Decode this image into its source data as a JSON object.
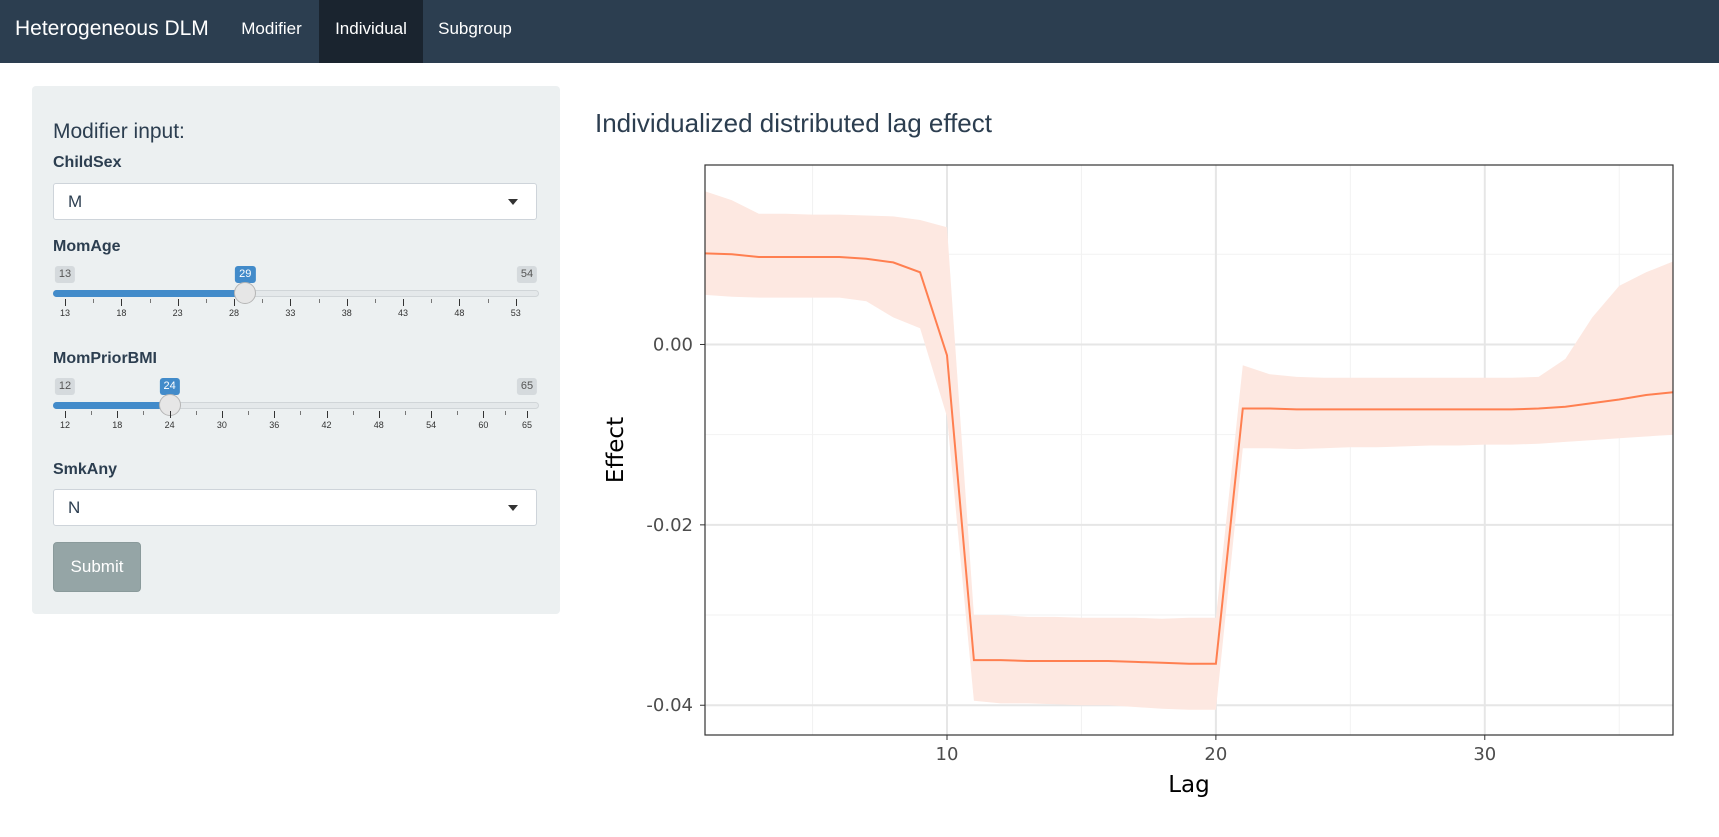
{
  "navbar": {
    "brand": "Heterogeneous DLM",
    "tabs": [
      {
        "label": "Modifier",
        "active": false
      },
      {
        "label": "Individual",
        "active": true
      },
      {
        "label": "Subgroup",
        "active": false
      }
    ],
    "background_color": "#2c3e50",
    "active_tab_color": "#1a242f"
  },
  "sidebar": {
    "title": "Modifier input:",
    "fields": {
      "childsex": {
        "label": "ChildSex",
        "value": "M"
      },
      "momage": {
        "label": "MomAge",
        "min": 13,
        "max": 54,
        "value": 29,
        "ticks": [
          "13",
          "18",
          "23",
          "28",
          "33",
          "38",
          "43",
          "48",
          "53"
        ],
        "tick_values": [
          13,
          18,
          23,
          28,
          33,
          38,
          43,
          48,
          53
        ]
      },
      "mompriorbmi": {
        "label": "MomPriorBMI",
        "min": 12,
        "max": 65,
        "value": 24,
        "ticks": [
          "12",
          "18",
          "24",
          "30",
          "36",
          "42",
          "48",
          "54",
          "60",
          "65"
        ],
        "tick_values": [
          12,
          18,
          24,
          30,
          36,
          42,
          48,
          54,
          60,
          65
        ]
      },
      "smkany": {
        "label": "SmkAny",
        "value": "N"
      }
    },
    "submit_label": "Submit",
    "slider_color": "#428bca"
  },
  "chart_title": "Individualized distributed lag effect",
  "chart_data": {
    "type": "line",
    "title": "Individualized distributed lag effect",
    "xlabel": "Lag",
    "ylabel": "Effect",
    "xlim": [
      1,
      37
    ],
    "ylim": [
      -0.0433,
      0.0199
    ],
    "x_ticks": [
      "10",
      "20",
      "30"
    ],
    "x_tick_values": [
      10,
      20,
      30
    ],
    "x_minor_values": [
      5,
      15,
      25,
      35
    ],
    "y_ticks": [
      "0.00",
      "-0.02",
      "-0.04"
    ],
    "y_tick_values": [
      0.0,
      -0.02,
      -0.04
    ],
    "y_minor_values": [
      0.01,
      -0.01,
      -0.03
    ],
    "grid": true,
    "line_color": "#ff7f50",
    "band_color": "#fde8e1",
    "series": [
      {
        "x": [
          1,
          2,
          3,
          4,
          5,
          6,
          7,
          8,
          9,
          10,
          11,
          12,
          13,
          14,
          15,
          16,
          17,
          18,
          19,
          20,
          21,
          22,
          23,
          24,
          25,
          26,
          27,
          28,
          29,
          30,
          31,
          32,
          33,
          34,
          35,
          36,
          37
        ],
        "values": [
          0.0101,
          0.01,
          0.0097,
          0.0097,
          0.0097,
          0.0097,
          0.0095,
          0.0091,
          0.008,
          -0.0012,
          -0.035,
          -0.035,
          -0.0351,
          -0.0351,
          -0.0351,
          -0.0351,
          -0.0352,
          -0.0353,
          -0.0354,
          -0.0354,
          -0.0071,
          -0.0071,
          -0.0072,
          -0.0072,
          -0.0072,
          -0.0072,
          -0.0072,
          -0.0072,
          -0.0072,
          -0.0072,
          -0.0072,
          -0.0071,
          -0.0069,
          -0.0065,
          -0.0061,
          -0.0056,
          -0.0053
        ],
        "lower": [
          0.0055,
          0.0053,
          0.0052,
          0.0052,
          0.0052,
          0.0052,
          0.0048,
          0.003,
          0.0018,
          -0.008,
          -0.0395,
          -0.0398,
          -0.0398,
          -0.0399,
          -0.04,
          -0.04,
          -0.0402,
          -0.0404,
          -0.0405,
          -0.0405,
          -0.0115,
          -0.0115,
          -0.0116,
          -0.0115,
          -0.0114,
          -0.0114,
          -0.0113,
          -0.0112,
          -0.0112,
          -0.0111,
          -0.0111,
          -0.011,
          -0.0108,
          -0.0106,
          -0.0104,
          -0.0102,
          -0.01
        ],
        "upper": [
          0.017,
          0.016,
          0.0145,
          0.0145,
          0.0144,
          0.0144,
          0.0143,
          0.0142,
          0.0138,
          0.013,
          -0.03,
          -0.03,
          -0.0302,
          -0.0302,
          -0.0303,
          -0.0303,
          -0.0303,
          -0.0304,
          -0.0303,
          -0.0303,
          -0.0023,
          -0.0033,
          -0.0036,
          -0.0037,
          -0.0037,
          -0.0037,
          -0.0037,
          -0.0037,
          -0.0037,
          -0.0037,
          -0.0037,
          -0.0036,
          -0.0016,
          0.003,
          0.0065,
          0.008,
          0.0092
        ]
      }
    ]
  }
}
